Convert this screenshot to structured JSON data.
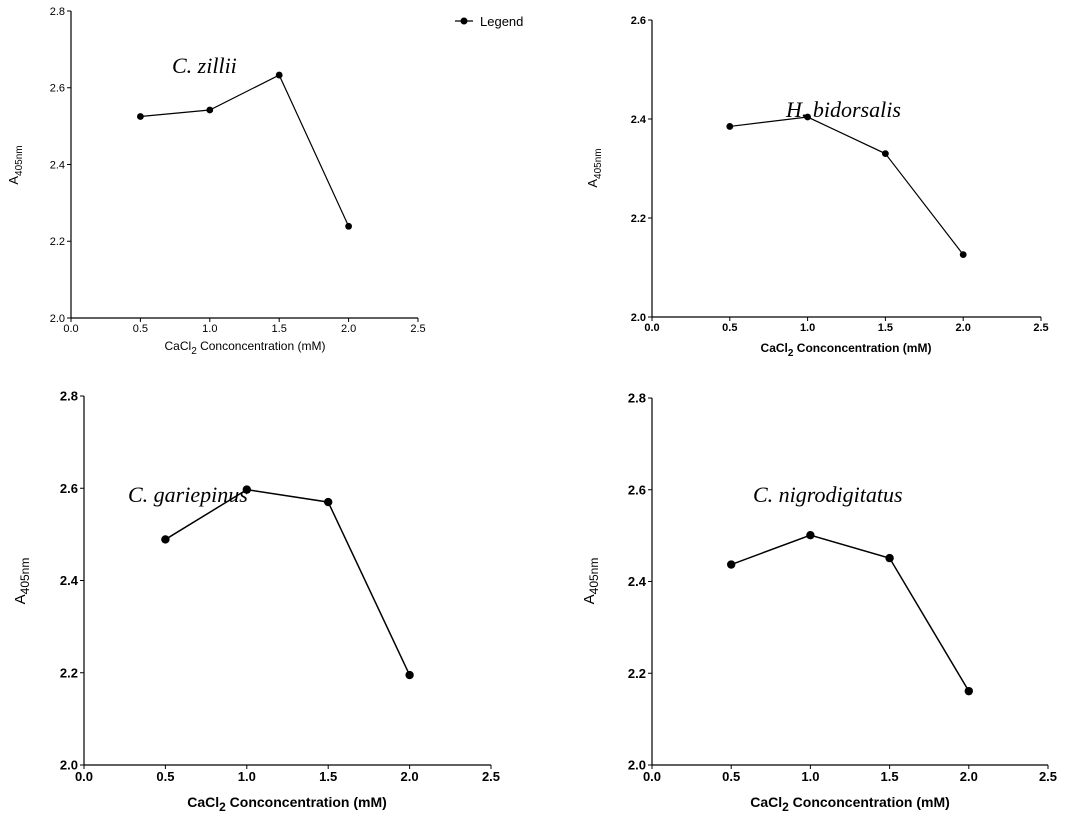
{
  "legend": {
    "label": "Legend"
  },
  "chart_data": [
    {
      "type": "line",
      "annotation": "C. zillii",
      "xlabel": "CaCl",
      "xlabel_sub": "2",
      "xlabel_rest": " Conconcentration (mM)",
      "ylabel": "A",
      "ylabel_sub": "405nm",
      "xlim": [
        0,
        2.5
      ],
      "ylim": [
        2.0,
        2.8
      ],
      "xticks": [
        "0.0",
        "0.5",
        "1.0",
        "1.5",
        "2.0",
        "2.5"
      ],
      "yticks": [
        "2.0",
        "2.2",
        "2.4",
        "2.6",
        "2.8"
      ],
      "x": [
        0.5,
        1.0,
        1.5,
        2.0
      ],
      "y": [
        2.525,
        2.542,
        2.633,
        2.239
      ]
    },
    {
      "type": "line",
      "annotation": "H. bidorsalis",
      "xlabel": "CaCl",
      "xlabel_sub": "2",
      "xlabel_rest": " Conconcentration (mM)",
      "ylabel": "A",
      "ylabel_sub": "405nm",
      "xlim": [
        0,
        2.5
      ],
      "ylim": [
        2.0,
        2.6
      ],
      "xticks": [
        "0.0",
        "0.5",
        "1.0",
        "1.5",
        "2.0",
        "2.5"
      ],
      "yticks": [
        "2.0",
        "2.2",
        "2.4",
        "2.6"
      ],
      "x": [
        0.5,
        1.0,
        1.5,
        2.0
      ],
      "y": [
        2.385,
        2.404,
        2.33,
        2.126
      ]
    },
    {
      "type": "line",
      "annotation": "C. gariepinus",
      "xlabel": "CaCl",
      "xlabel_sub": "2",
      "xlabel_rest": " Conconcentration (mM)",
      "ylabel": "A",
      "ylabel_sub": "405nm",
      "xlim": [
        0,
        2.5
      ],
      "ylim": [
        2.0,
        2.8
      ],
      "xticks": [
        "0.0",
        "0.5",
        "1.0",
        "1.5",
        "2.0",
        "2.5"
      ],
      "yticks": [
        "2.0",
        "2.2",
        "2.4",
        "2.6",
        "2.8"
      ],
      "x": [
        0.5,
        1.0,
        1.5,
        2.0
      ],
      "y": [
        2.489,
        2.597,
        2.57,
        2.195
      ]
    },
    {
      "type": "line",
      "annotation": "C. nigrodigitatus",
      "xlabel": "CaCl",
      "xlabel_sub": "2",
      "xlabel_rest": " Conconcentration (mM)",
      "ylabel": "A",
      "ylabel_sub": "405nm",
      "xlim": [
        0,
        2.5
      ],
      "ylim": [
        2.0,
        2.8
      ],
      "xticks": [
        "0.0",
        "0.5",
        "1.0",
        "1.5",
        "2.0",
        "2.5"
      ],
      "yticks": [
        "2.0",
        "2.2",
        "2.4",
        "2.6",
        "2.8"
      ],
      "x": [
        0.5,
        1.0,
        1.5,
        2.0
      ],
      "y": [
        2.437,
        2.501,
        2.451,
        2.161
      ]
    }
  ]
}
